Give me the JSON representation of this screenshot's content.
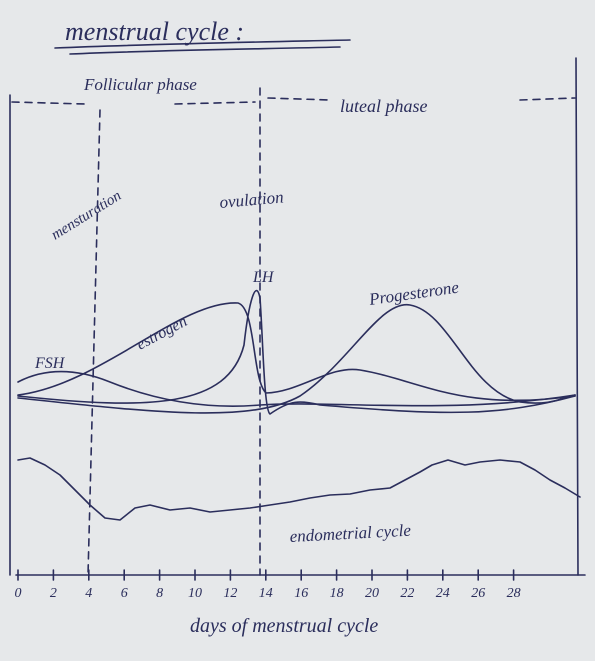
{
  "title": "menstrual cycle :",
  "phases": {
    "follicular": "Follicular phase",
    "luteal": "luteal phase"
  },
  "events": {
    "menstruation": "mensturation",
    "ovulation": "ovulation"
  },
  "hormones": {
    "lh": "LH",
    "fsh": "FSH",
    "estrogen": "estrogen",
    "progesterone": "Progesterone"
  },
  "endometrium": "endometrial cycle",
  "x_axis": {
    "label": "days of menstrual cycle",
    "ticks": [
      0,
      2,
      4,
      6,
      8,
      10,
      12,
      14,
      16,
      18,
      20,
      22,
      24,
      26,
      28
    ]
  }
}
